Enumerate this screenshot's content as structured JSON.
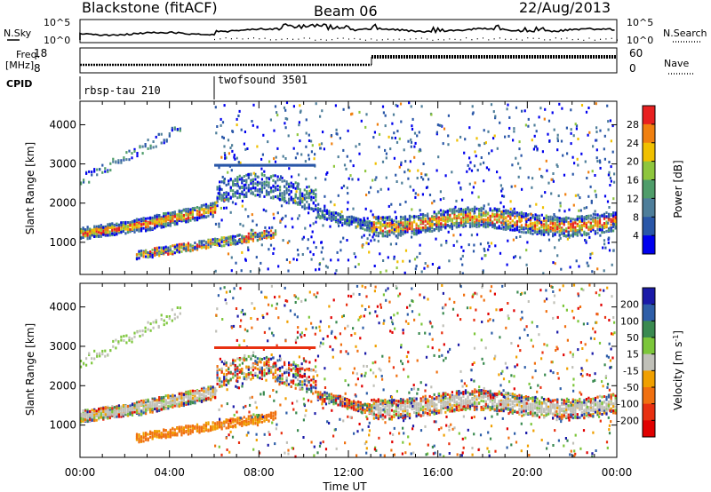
{
  "header": {
    "title": "Blackstone (fitACF)",
    "beam": "Beam 06",
    "date": "22/Aug/2013"
  },
  "noise_panel": {
    "left_label": "N.Sky",
    "left_ticks": [
      "10^5",
      "10^0"
    ],
    "right_label": "N.Search",
    "right_ticks": [
      "10^5",
      "10^0"
    ]
  },
  "freq_panel": {
    "left_label_line1": "Freq.",
    "left_label_line2": "[MHz]",
    "left_ticks": [
      "18",
      "8"
    ],
    "right_label": "Nave",
    "right_ticks": [
      "60",
      "0"
    ]
  },
  "cpid_panel": {
    "label": "CPID",
    "programs": [
      {
        "name": "rbsp-tau 210",
        "start_hour": 0
      },
      {
        "name": "twofsound 3501",
        "start_hour": 6
      }
    ]
  },
  "x_axis": {
    "label": "Time UT",
    "ticks": [
      "00:00",
      "04:00",
      "08:00",
      "12:00",
      "16:00",
      "20:00",
      "00:00"
    ],
    "tick_hours": [
      0,
      4,
      8,
      12,
      16,
      20,
      24
    ]
  },
  "chart_data": [
    {
      "type": "heatmap",
      "name": "power",
      "ylabel": "Slant Range [km]",
      "yticks": [
        1000,
        2000,
        3000,
        4000
      ],
      "ylim": [
        180,
        4600
      ],
      "xlim": [
        0,
        24
      ],
      "colorbar": {
        "label": "Power [dB]",
        "ticks": [
          "4",
          "8",
          "12",
          "16",
          "20",
          "24",
          "28"
        ],
        "colors": [
          "#0000ee",
          "#2a57a8",
          "#4e7e9a",
          "#4f9d6a",
          "#8ec63d",
          "#f0c000",
          "#f08010",
          "#e82020"
        ]
      }
    },
    {
      "type": "heatmap",
      "name": "velocity",
      "ylabel": "Slant Range [km]",
      "yticks": [
        1000,
        2000,
        3000,
        4000
      ],
      "ylim": [
        180,
        4600
      ],
      "xlim": [
        0,
        24
      ],
      "colorbar": {
        "label": "Velocity [m s^-1]",
        "ticks": [
          "200",
          "100",
          "50",
          "15",
          "-15",
          "-50",
          "-100",
          "-200"
        ],
        "colors": [
          "#1a1aa8",
          "#2e5ea8",
          "#3a8a50",
          "#7cc63a",
          "#c0c0b8",
          "#f0a000",
          "#f07010",
          "#e83010",
          "#e00000"
        ]
      }
    }
  ]
}
